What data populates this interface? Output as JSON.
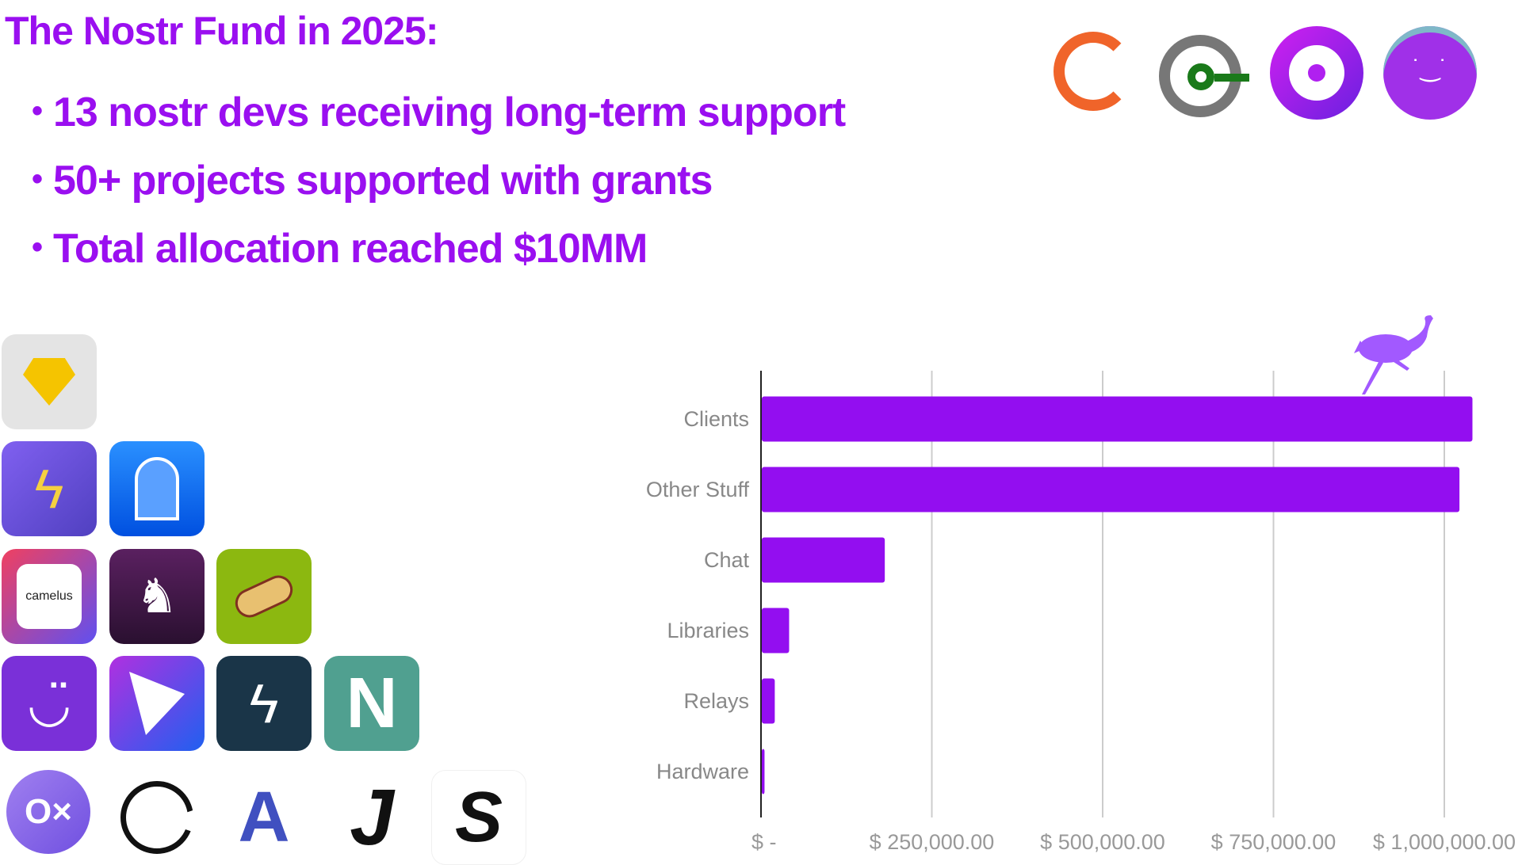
{
  "header": {
    "title": "The Nostr Fund in 2025:",
    "bullets": [
      "13 nostr devs receiving long-term support",
      "50+ projects supported with grants",
      "Total allocation reached $10MM"
    ]
  },
  "apps": {
    "camelus_label": "camelus"
  },
  "colors": {
    "accent": "#9a0ff0",
    "bar": "#930ef0",
    "grid": "#cccccc",
    "ostrich": "#a259ff"
  },
  "chart_data": {
    "type": "bar",
    "orientation": "horizontal",
    "categories": [
      "Clients",
      "Other Stuff",
      "Chat",
      "Libraries",
      "Relays",
      "Hardware"
    ],
    "values": [
      1040000,
      1021000,
      180000,
      40000,
      19000,
      4000
    ],
    "xlim": [
      0,
      1000000
    ],
    "tick_values": [
      0,
      250000,
      500000,
      750000,
      1000000
    ],
    "tick_labels": [
      "$ -",
      "$ 250,000.00",
      "$ 500,000.00",
      "$ 750,000.00",
      "$ 1,000,000.00"
    ],
    "grid": "vertical",
    "title": "",
    "xlabel": "",
    "ylabel": ""
  }
}
